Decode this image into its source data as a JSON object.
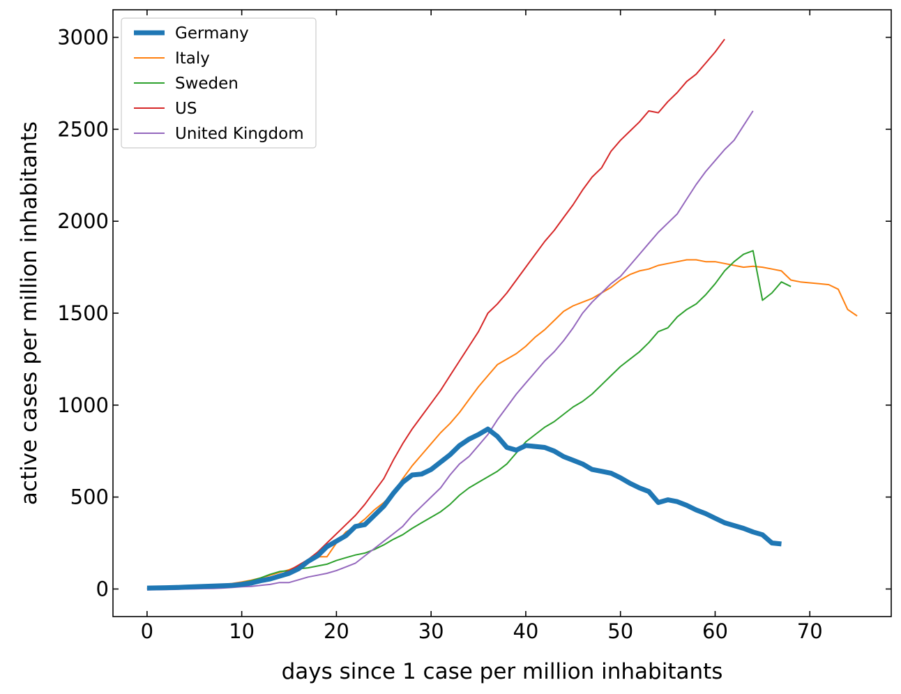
{
  "chart_data": {
    "type": "line",
    "title": "",
    "xlabel": "days since 1 case per million inhabitants",
    "ylabel": "active cases per million inhabitants",
    "xlim": [
      -3.6,
      78.6
    ],
    "ylim": [
      -150,
      3150
    ],
    "xticks": [
      0,
      10,
      20,
      30,
      40,
      50,
      60,
      70
    ],
    "yticks": [
      0,
      500,
      1000,
      1500,
      2000,
      2500,
      3000
    ],
    "grid": false,
    "legend_position": "top-left",
    "series": [
      {
        "name": "Germany",
        "color": "#1f77b4",
        "emphasis": true,
        "x": [
          0,
          1,
          2,
          3,
          4,
          5,
          6,
          7,
          8,
          9,
          10,
          11,
          12,
          13,
          14,
          15,
          16,
          17,
          18,
          19,
          20,
          21,
          22,
          23,
          24,
          25,
          26,
          27,
          28,
          29,
          30,
          31,
          32,
          33,
          34,
          35,
          36,
          37,
          38,
          39,
          40,
          41,
          42,
          43,
          44,
          45,
          46,
          47,
          48,
          49,
          50,
          51,
          52,
          53,
          54,
          55,
          56,
          57,
          58,
          59,
          60,
          61,
          62,
          63,
          64,
          65,
          66,
          67
        ],
        "y": [
          5,
          6,
          7,
          8,
          10,
          12,
          14,
          16,
          18,
          20,
          25,
          32,
          45,
          55,
          70,
          85,
          110,
          150,
          180,
          230,
          260,
          290,
          340,
          350,
          400,
          450,
          520,
          580,
          620,
          625,
          650,
          690,
          730,
          780,
          815,
          840,
          870,
          830,
          770,
          755,
          780,
          775,
          770,
          750,
          720,
          700,
          680,
          650,
          640,
          630,
          605,
          575,
          550,
          530,
          470,
          485,
          475,
          455,
          430,
          410,
          385,
          360,
          345,
          330,
          310,
          295,
          250,
          245
        ]
      },
      {
        "name": "Italy",
        "color": "#ff7f0e",
        "emphasis": false,
        "x": [
          0,
          1,
          2,
          3,
          4,
          5,
          6,
          7,
          8,
          9,
          10,
          11,
          12,
          13,
          14,
          15,
          16,
          17,
          18,
          19,
          20,
          21,
          22,
          23,
          24,
          25,
          26,
          27,
          28,
          29,
          30,
          31,
          32,
          33,
          34,
          35,
          36,
          37,
          38,
          39,
          40,
          41,
          42,
          43,
          44,
          45,
          46,
          47,
          48,
          49,
          50,
          51,
          52,
          53,
          54,
          55,
          56,
          57,
          58,
          59,
          60,
          61,
          62,
          63,
          64,
          65,
          66,
          67,
          68,
          69,
          70,
          71,
          72,
          73,
          74,
          75
        ],
        "y": [
          5,
          6,
          7,
          9,
          11,
          13,
          16,
          20,
          24,
          30,
          38,
          48,
          60,
          75,
          90,
          105,
          125,
          150,
          175,
          175,
          250,
          310,
          340,
          380,
          430,
          470,
          520,
          600,
          670,
          730,
          790,
          850,
          900,
          960,
          1030,
          1100,
          1160,
          1220,
          1250,
          1280,
          1320,
          1370,
          1410,
          1460,
          1510,
          1540,
          1560,
          1580,
          1610,
          1640,
          1680,
          1710,
          1730,
          1740,
          1760,
          1770,
          1780,
          1790,
          1790,
          1780,
          1780,
          1770,
          1760,
          1750,
          1755,
          1750,
          1740,
          1730,
          1680,
          1670,
          1665,
          1660,
          1655,
          1630,
          1520,
          1485
        ]
      },
      {
        "name": "Sweden",
        "color": "#2ca02c",
        "emphasis": false,
        "x": [
          0,
          1,
          2,
          3,
          4,
          5,
          6,
          7,
          8,
          9,
          10,
          11,
          12,
          13,
          14,
          15,
          16,
          17,
          18,
          19,
          20,
          21,
          22,
          23,
          24,
          25,
          26,
          27,
          28,
          29,
          30,
          31,
          32,
          33,
          34,
          35,
          36,
          37,
          38,
          39,
          40,
          41,
          42,
          43,
          44,
          45,
          46,
          47,
          48,
          49,
          50,
          51,
          52,
          53,
          54,
          55,
          56,
          57,
          58,
          59,
          60,
          61,
          62,
          63,
          64,
          65,
          66,
          67,
          68
        ],
        "y": [
          3,
          4,
          5,
          7,
          9,
          11,
          14,
          17,
          20,
          25,
          35,
          45,
          60,
          80,
          95,
          100,
          110,
          115,
          125,
          135,
          155,
          170,
          185,
          195,
          215,
          240,
          270,
          295,
          330,
          360,
          390,
          420,
          460,
          510,
          550,
          580,
          610,
          640,
          680,
          740,
          800,
          840,
          880,
          910,
          950,
          990,
          1020,
          1060,
          1110,
          1160,
          1210,
          1250,
          1290,
          1340,
          1400,
          1420,
          1480,
          1520,
          1550,
          1600,
          1660,
          1730,
          1780,
          1820,
          1840,
          1570,
          1610,
          1670,
          1645
        ]
      },
      {
        "name": "US",
        "color": "#d62728",
        "emphasis": false,
        "x": [
          0,
          1,
          2,
          3,
          4,
          5,
          6,
          7,
          8,
          9,
          10,
          11,
          12,
          13,
          14,
          15,
          16,
          17,
          18,
          19,
          20,
          21,
          22,
          23,
          24,
          25,
          26,
          27,
          28,
          29,
          30,
          31,
          32,
          33,
          34,
          35,
          36,
          37,
          38,
          39,
          40,
          41,
          42,
          43,
          44,
          45,
          46,
          47,
          48,
          49,
          50,
          51,
          52,
          53,
          54,
          55,
          56,
          57,
          58,
          59,
          60,
          61
        ],
        "y": [
          2,
          3,
          4,
          5,
          7,
          9,
          11,
          14,
          17,
          22,
          28,
          36,
          46,
          58,
          75,
          100,
          130,
          160,
          200,
          250,
          300,
          350,
          400,
          460,
          530,
          600,
          700,
          790,
          870,
          940,
          1010,
          1080,
          1160,
          1240,
          1320,
          1400,
          1500,
          1550,
          1610,
          1680,
          1750,
          1820,
          1890,
          1950,
          2020,
          2090,
          2170,
          2240,
          2290,
          2380,
          2440,
          2490,
          2540,
          2600,
          2590,
          2650,
          2700,
          2760,
          2800,
          2860,
          2920,
          2990
        ]
      },
      {
        "name": "United Kingdom",
        "color": "#9467bd",
        "emphasis": false,
        "x": [
          0,
          1,
          2,
          3,
          4,
          5,
          6,
          7,
          8,
          9,
          10,
          11,
          12,
          13,
          14,
          15,
          16,
          17,
          18,
          19,
          20,
          21,
          22,
          23,
          24,
          25,
          26,
          27,
          28,
          29,
          30,
          31,
          32,
          33,
          34,
          35,
          36,
          37,
          38,
          39,
          40,
          41,
          42,
          43,
          44,
          45,
          46,
          47,
          48,
          49,
          50,
          51,
          52,
          53,
          54,
          55,
          56,
          57,
          58,
          59,
          60,
          61,
          62,
          63,
          64
        ],
        "y": [
          -5,
          -4,
          -3,
          -2,
          0,
          1,
          2,
          3,
          5,
          8,
          12,
          14,
          20,
          25,
          35,
          35,
          50,
          65,
          75,
          85,
          100,
          120,
          140,
          180,
          220,
          260,
          300,
          340,
          400,
          450,
          500,
          550,
          620,
          680,
          720,
          780,
          840,
          920,
          990,
          1060,
          1120,
          1180,
          1240,
          1290,
          1350,
          1420,
          1500,
          1560,
          1610,
          1660,
          1700,
          1760,
          1820,
          1880,
          1940,
          1990,
          2040,
          2120,
          2200,
          2270,
          2330,
          2390,
          2440,
          2520,
          2600
        ]
      }
    ]
  }
}
